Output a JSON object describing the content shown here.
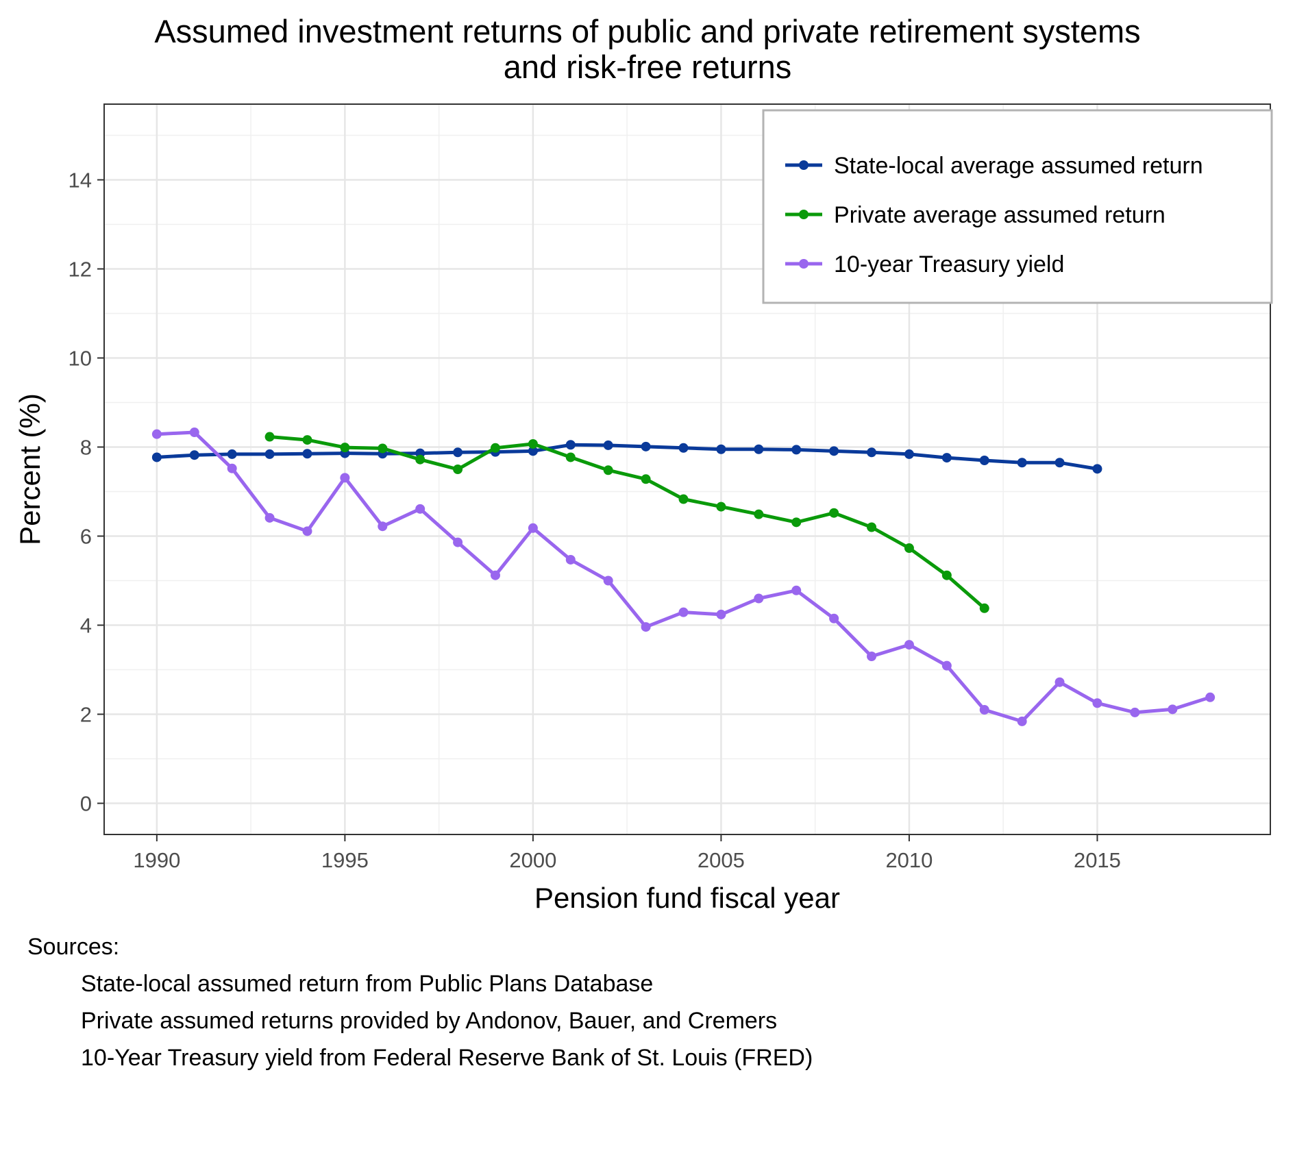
{
  "chart_data": {
    "type": "line",
    "title": [
      "Assumed investment returns of public and private retirement systems",
      "and risk-free returns"
    ],
    "xlabel": "Pension fund fiscal year",
    "ylabel": "Percent (%)",
    "xlim": [
      1988.6,
      2019.6
    ],
    "ylim": [
      -0.7,
      15.7
    ],
    "xticks": [
      1990,
      1995,
      2000,
      2005,
      2010,
      2015
    ],
    "yticks": [
      0,
      2,
      4,
      6,
      8,
      10,
      12,
      14
    ],
    "grid": true,
    "legend_position": "top-right",
    "series": [
      {
        "name": "State-local average assumed return",
        "color": "#0a3a9a",
        "x": [
          1990,
          1991,
          1992,
          1993,
          1994,
          1995,
          1996,
          1997,
          1998,
          1999,
          2000,
          2001,
          2002,
          2003,
          2004,
          2005,
          2006,
          2007,
          2008,
          2009,
          2010,
          2011,
          2012,
          2013,
          2014,
          2015
        ],
        "y": [
          7.77,
          7.82,
          7.84,
          7.84,
          7.85,
          7.86,
          7.85,
          7.86,
          7.88,
          7.89,
          7.91,
          8.05,
          8.04,
          8.01,
          7.98,
          7.95,
          7.95,
          7.94,
          7.91,
          7.88,
          7.84,
          7.76,
          7.7,
          7.65,
          7.65,
          7.51
        ]
      },
      {
        "name": "Private average assumed return",
        "color": "#0a9a0a",
        "x": [
          1993,
          1994,
          1995,
          1996,
          1997,
          1998,
          1999,
          2000,
          2001,
          2002,
          2003,
          2004,
          2005,
          2006,
          2007,
          2008,
          2009,
          2010,
          2011,
          2012
        ],
        "y": [
          8.23,
          8.16,
          7.99,
          7.97,
          7.72,
          7.5,
          7.98,
          8.07,
          7.77,
          7.48,
          7.28,
          6.83,
          6.66,
          6.49,
          6.31,
          6.52,
          6.2,
          5.73,
          5.12,
          4.38
        ]
      },
      {
        "name": "10-year Treasury yield",
        "color": "#9966ee",
        "x": [
          1990,
          1991,
          1992,
          1993,
          1994,
          1995,
          1996,
          1997,
          1998,
          1999,
          2000,
          2001,
          2002,
          2003,
          2004,
          2005,
          2006,
          2007,
          2008,
          2009,
          2010,
          2011,
          2012,
          2013,
          2014,
          2015,
          2016,
          2017,
          2018
        ],
        "y": [
          8.29,
          8.33,
          7.52,
          6.41,
          6.11,
          7.31,
          6.22,
          6.61,
          5.86,
          5.12,
          6.18,
          5.47,
          5.0,
          3.96,
          4.29,
          4.24,
          4.6,
          4.78,
          4.15,
          3.3,
          3.56,
          3.09,
          2.1,
          1.84,
          2.72,
          2.25,
          2.04,
          2.11,
          2.38
        ]
      }
    ]
  },
  "sources": {
    "heading": "Sources:",
    "items": [
      "State-local assumed return from Public Plans Database",
      " Private assumed returns provided by Andonov, Bauer, and Cremers",
      "10-Year Treasury yield from Federal Reserve Bank of St. Louis (FRED)"
    ]
  }
}
